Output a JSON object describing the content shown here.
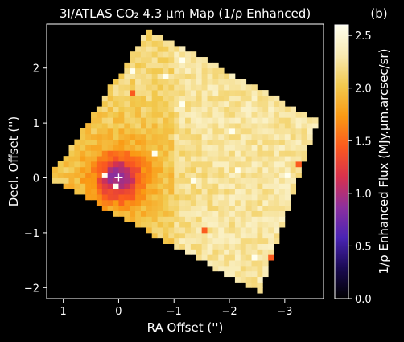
{
  "chart_data": {
    "type": "heatmap",
    "title": "3I/ATLAS CO₂ 4.3 μm Map (1/ρ Enhanced)",
    "panel_label": "(b)",
    "xlabel": "RA Offset ('')",
    "ylabel": "Decl. Offset ('')",
    "xlim": [
      1.3,
      -3.7
    ],
    "ylim": [
      -2.2,
      2.8
    ],
    "x_ticks": [
      1,
      0,
      -1,
      -2,
      -3
    ],
    "x_tick_labels": [
      "1",
      "0",
      "−1",
      "−2",
      "−3"
    ],
    "y_ticks": [
      2,
      1,
      0,
      -1,
      -2
    ],
    "y_tick_labels": [
      "2",
      "1",
      "0",
      "−1",
      "−2"
    ],
    "colorbar": {
      "label": "1/ρ Enhanced Flux (MJy.μm.arcsec/sr)",
      "range": [
        0.0,
        2.6
      ],
      "ticks": [
        0.0,
        0.5,
        1.0,
        1.5,
        2.0,
        2.5
      ],
      "tick_labels": [
        "0.0",
        "0.5",
        "1.0",
        "1.5",
        "2.0",
        "2.5"
      ],
      "colormap": [
        "#000000",
        "#1a0a52",
        "#4a24b4",
        "#8c2f9e",
        "#d8314d",
        "#fb5a1e",
        "#fa9a14",
        "#f2c94e",
        "#f8eab2",
        "#ffffee"
      ]
    },
    "map": {
      "footprint_corners": [
        [
          -0.55,
          2.7
        ],
        [
          -3.6,
          1.05
        ],
        [
          -2.55,
          -2.1
        ],
        [
          1.25,
          0.0
        ]
      ],
      "background_level": 2.15,
      "nucleus_position": [
        0.0,
        0.0
      ],
      "nucleus_level": 1.2,
      "nucleus_marker": "+"
    },
    "grid": false,
    "background_color": "#000000",
    "text_color": "#ffffff"
  }
}
